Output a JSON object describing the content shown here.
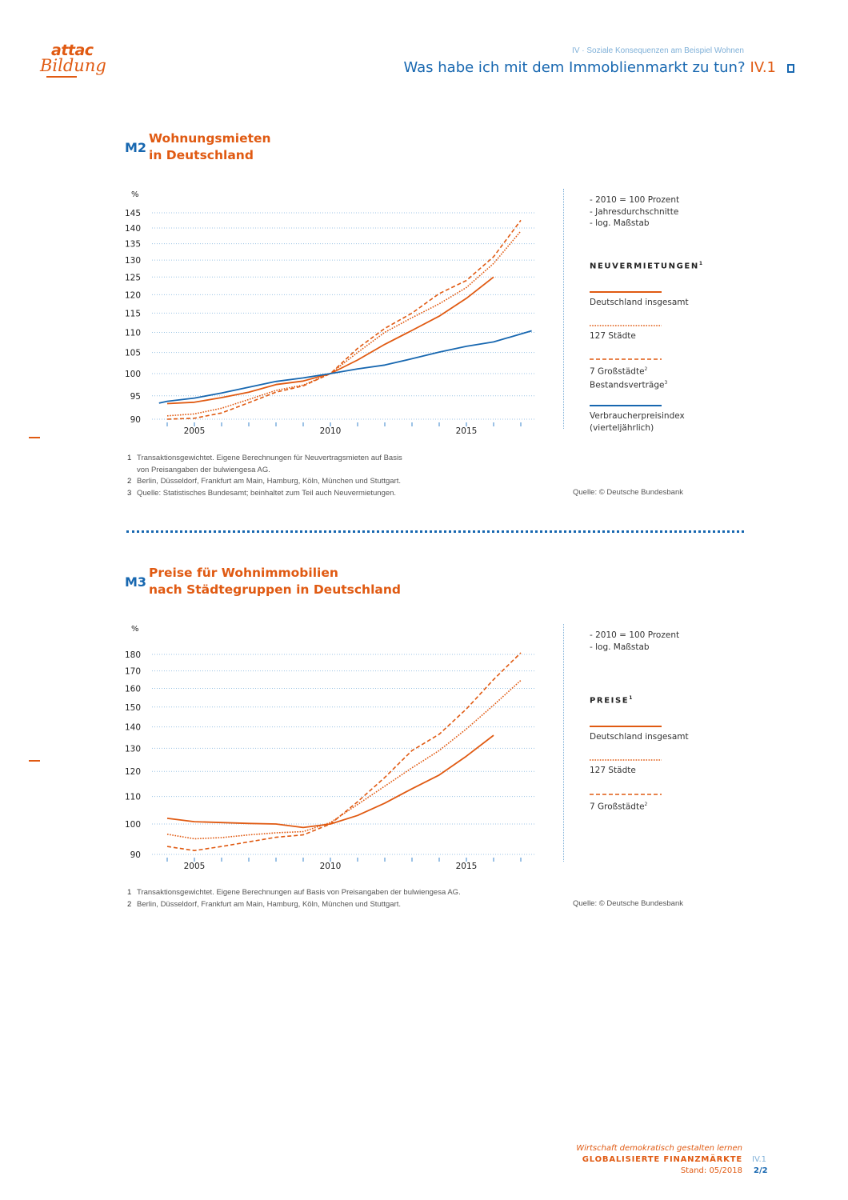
{
  "logo": {
    "line1": "attac",
    "line2": "Bildung"
  },
  "header": {
    "kicker": "IV · Soziale Konsequenzen am Beispiel Wohnen",
    "title": "Was habe ich mit dem Immoblienmarkt zu tun?",
    "code": "IV.1"
  },
  "m2": {
    "code": "M2",
    "title_line1": "Wohnungsmieten",
    "title_line2": "in Deutschland",
    "notes": [
      "- 2010 = 100 Prozent",
      "- Jahresdurchschnitte",
      "- log. Maßstab"
    ],
    "legend_heading": "NEUVERMIETUNGEN",
    "legend_heading_sup": "1",
    "legend": [
      {
        "label": "Deutschland insgesamt",
        "style": "solid",
        "color": "#e05a12"
      },
      {
        "label": "127 Städte",
        "style": "dotted",
        "color": "#e05a12"
      },
      {
        "label": "7 Großstädte",
        "sup": "2",
        "label2": "Bestandsverträge",
        "sup2": "3",
        "style": "dashed",
        "color": "#e05a12"
      },
      {
        "label": "Verbraucherpreisindex",
        "label2": "(vierteljährlich)",
        "style": "solid",
        "color": "#1767b0"
      }
    ],
    "footnotes": [
      {
        "n": "1",
        "text": "Transaktionsgewichtet. Eigene Berechnungen für Neuvertragsmieten auf Basis",
        "text2": "von Preisangaben der bulwiengesa AG."
      },
      {
        "n": "2",
        "text": "Berlin, Düsseldorf, Frankfurt am Main, Hamburg, Köln, München und Stuttgart."
      },
      {
        "n": "3",
        "text": "Quelle: Statistisches Bundesamt; beinhaltet zum Teil auch Neuvermietungen."
      }
    ],
    "source": "Quelle: © Deutsche Bundesbank"
  },
  "m3": {
    "code": "M3",
    "title_line1": "Preise für Wohnimmobilien",
    "title_line2": "nach Städtegruppen in Deutschland",
    "notes": [
      "- 2010 = 100 Prozent",
      "- log. Maßstab"
    ],
    "legend_heading": "PREISE",
    "legend_heading_sup": "1",
    "legend": [
      {
        "label": "Deutschland insgesamt",
        "style": "solid",
        "color": "#e05a12"
      },
      {
        "label": "127 Städte",
        "style": "dotted",
        "color": "#e05a12"
      },
      {
        "label": "7 Großstädte",
        "sup": "2",
        "style": "dashed",
        "color": "#e05a12"
      }
    ],
    "footnotes": [
      {
        "n": "1",
        "text": "Transaktionsgewichtet. Eigene Berechnungen auf Basis von Preisangaben der bulwiengesa AG."
      },
      {
        "n": "2",
        "text": "Berlin, Düsseldorf, Frankfurt am Main, Hamburg, Köln, München und Stuttgart."
      }
    ],
    "source": "Quelle: © Deutsche Bundesbank"
  },
  "footer": {
    "slogan": "Wirtschaft demokratisch gestalten lernen",
    "series": "GLOBALISIERTE FINANZMÄRKTE",
    "date": "Stand: 05/2018",
    "code": "IV.1",
    "page": "2/2"
  },
  "chart_data": [
    {
      "type": "line",
      "title": "Wohnungsmieten in Deutschland",
      "ylabel": "%",
      "xlabel": "",
      "yscale": "log",
      "ylim": [
        90,
        145
      ],
      "xlim": [
        2003.5,
        2017.5
      ],
      "yticks": [
        90,
        95,
        100,
        105,
        110,
        115,
        120,
        125,
        130,
        135,
        140,
        145
      ],
      "xticks": [
        2004,
        2005,
        2006,
        2007,
        2008,
        2009,
        2010,
        2011,
        2012,
        2013,
        2014,
        2015,
        2016,
        2017
      ],
      "xtick_labels": {
        "2005": "2005",
        "2010": "2010",
        "2015": "2015"
      },
      "grid": true,
      "legend_position": "right",
      "series": [
        {
          "name": "Deutschland insgesamt",
          "style": "solid",
          "color": "#e05a12",
          "x": [
            2004,
            2005,
            2006,
            2007,
            2008,
            2009,
            2010,
            2011,
            2012,
            2013,
            2014,
            2015,
            2016
          ],
          "values": [
            93.3,
            93.6,
            94.6,
            95.8,
            97.5,
            98.3,
            100,
            103.2,
            107,
            110.5,
            114.2,
            119,
            125
          ]
        },
        {
          "name": "127 Städte",
          "style": "dotted",
          "color": "#e05a12",
          "x": [
            2004,
            2005,
            2006,
            2007,
            2008,
            2009,
            2010,
            2011,
            2012,
            2013,
            2014,
            2015,
            2016,
            2017
          ],
          "values": [
            90.7,
            91.1,
            92.3,
            94.2,
            96.2,
            97.4,
            100,
            105,
            110,
            113.8,
            117.5,
            122,
            129,
            139
          ]
        },
        {
          "name": "7 Großstädte Bestandsverträge",
          "style": "dashed",
          "color": "#e05a12",
          "x": [
            2004,
            2005,
            2006,
            2007,
            2008,
            2009,
            2010,
            2011,
            2012,
            2013,
            2014,
            2015,
            2016,
            2017
          ],
          "values": [
            90,
            90.2,
            91.3,
            93.5,
            95.8,
            97.2,
            100,
            106,
            111,
            115,
            120.3,
            124,
            131,
            142.5
          ]
        },
        {
          "name": "Verbraucherpreisindex (vierteljährlich)",
          "style": "solid",
          "color": "#1767b0",
          "x": [
            2003.7,
            2004,
            2005,
            2006,
            2007,
            2008,
            2009,
            2010,
            2011,
            2012,
            2013,
            2014,
            2015,
            2016,
            2017.4
          ],
          "values": [
            93.4,
            93.8,
            94.5,
            95.6,
            96.9,
            98.2,
            99,
            100,
            101.1,
            102,
            103.5,
            105.1,
            106.5,
            107.6,
            110.4
          ]
        }
      ]
    },
    {
      "type": "line",
      "title": "Preise für Wohnimmobilien nach Städtegruppen in Deutschland",
      "ylabel": "%",
      "xlabel": "",
      "yscale": "log",
      "ylim": [
        90,
        180
      ],
      "xlim": [
        2003.5,
        2017.5
      ],
      "yticks": [
        90,
        100,
        110,
        120,
        130,
        140,
        150,
        160,
        170,
        180
      ],
      "xticks": [
        2004,
        2005,
        2006,
        2007,
        2008,
        2009,
        2010,
        2011,
        2012,
        2013,
        2014,
        2015,
        2016,
        2017
      ],
      "xtick_labels": {
        "2005": "2005",
        "2010": "2010",
        "2015": "2015"
      },
      "grid": true,
      "legend_position": "right",
      "series": [
        {
          "name": "Deutschland insgesamt",
          "style": "solid",
          "color": "#e05a12",
          "x": [
            2004,
            2005,
            2006,
            2007,
            2008,
            2009,
            2010,
            2011,
            2012,
            2013,
            2014,
            2015,
            2016
          ],
          "values": [
            102,
            100.8,
            100.5,
            100.2,
            100,
            98.8,
            100,
            103,
            107.5,
            113,
            118.5,
            126.5,
            136
          ]
        },
        {
          "name": "127 Städte",
          "style": "dotted",
          "color": "#e05a12",
          "x": [
            2004,
            2005,
            2006,
            2007,
            2008,
            2009,
            2010,
            2011,
            2012,
            2013,
            2014,
            2015,
            2016,
            2017
          ],
          "values": [
            96.5,
            95,
            95.4,
            96.3,
            97,
            97.4,
            100.5,
            107,
            114,
            121.5,
            129,
            139,
            151,
            164.5
          ]
        },
        {
          "name": "7 Großstädte",
          "style": "dashed",
          "color": "#e05a12",
          "x": [
            2004,
            2005,
            2006,
            2007,
            2008,
            2009,
            2010,
            2011,
            2012,
            2013,
            2014,
            2015,
            2016,
            2017
          ],
          "values": [
            92.5,
            91.2,
            92.5,
            94,
            95.5,
            96.3,
            100,
            108,
            117.5,
            129,
            136.5,
            149,
            165,
            181
          ]
        }
      ]
    }
  ]
}
